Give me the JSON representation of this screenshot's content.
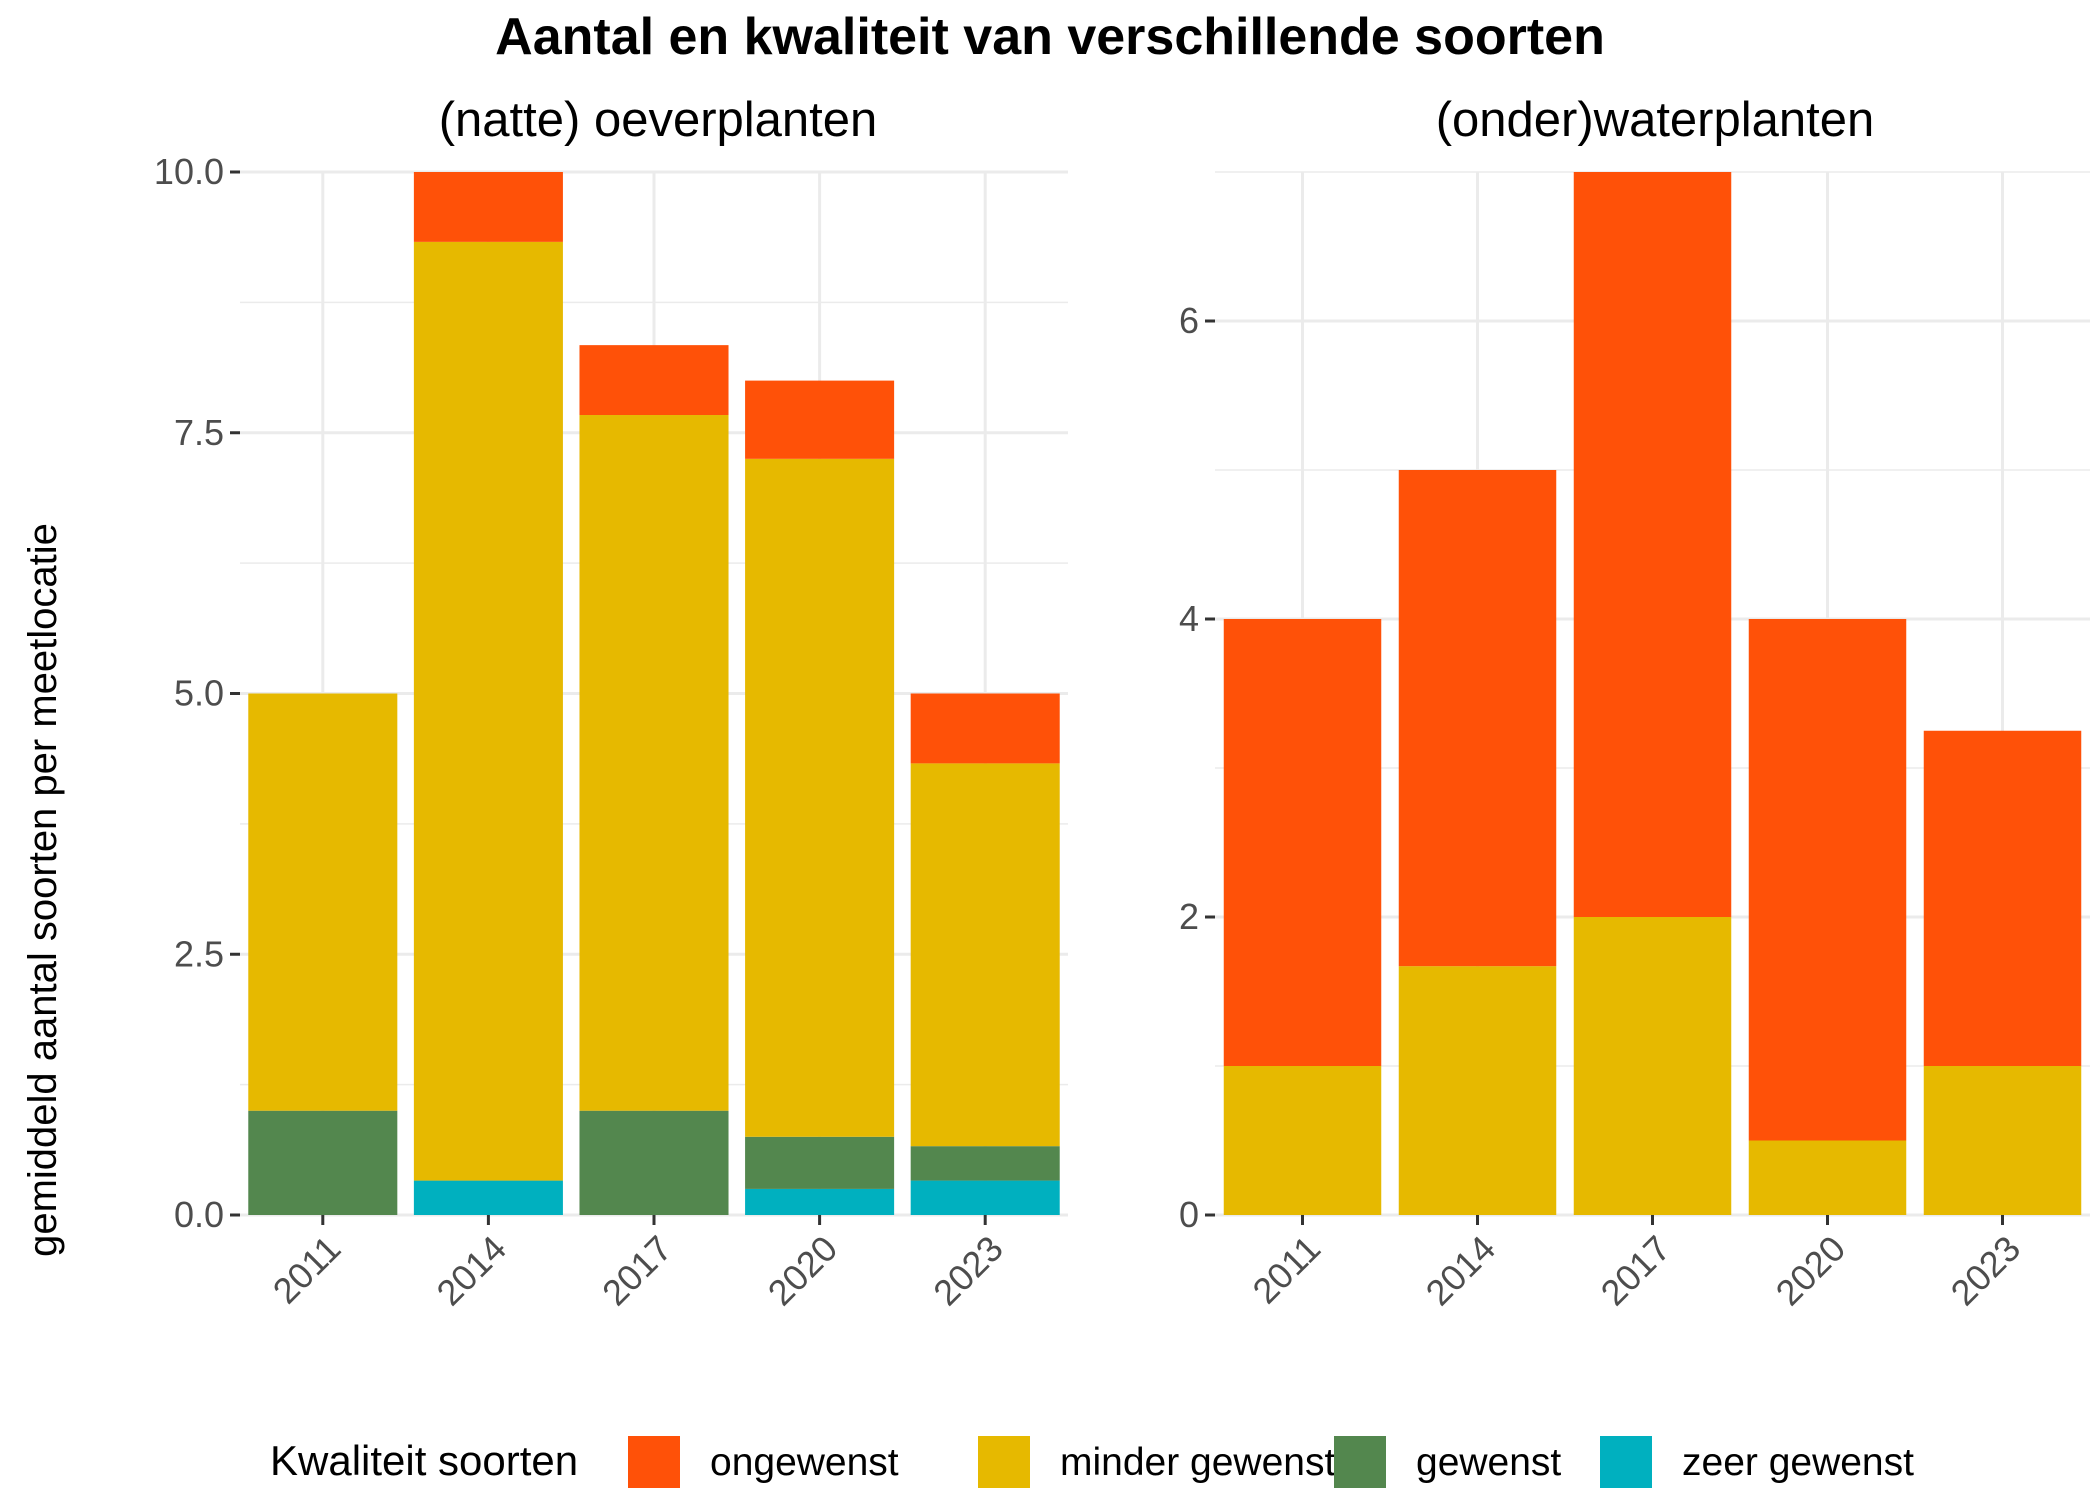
{
  "title": "Aantal en kwaliteit van verschillende soorten",
  "ylabel": "gemiddeld aantal soorten per meetlocatie",
  "legend": {
    "title": "Kwaliteit soorten",
    "placement": "bottom",
    "items": [
      {
        "label": "ongewenst",
        "color": "#FF5108"
      },
      {
        "label": "minder gewenst",
        "color": "#E6B900"
      },
      {
        "label": "gewenst",
        "color": "#53874E"
      },
      {
        "label": "zeer gewenst",
        "color": "#00B0BF"
      }
    ]
  },
  "chart_data": [
    {
      "type": "bar",
      "stacked": true,
      "title": "(natte) oeverplanten",
      "categories": [
        "2011",
        "2014",
        "2017",
        "2020",
        "2023"
      ],
      "ylim": [
        0,
        10
      ],
      "yticks": [
        0,
        2.5,
        5,
        7.5,
        10
      ],
      "ytick_labels": [
        "0.0",
        "2.5",
        "5.0",
        "7.5",
        "10.0"
      ],
      "grid": true,
      "series": [
        {
          "name": "zeer gewenst",
          "values": [
            0,
            0.33,
            0,
            0.25,
            0.33
          ]
        },
        {
          "name": "gewenst",
          "values": [
            1,
            0,
            1,
            0.5,
            0.33
          ]
        },
        {
          "name": "minder gewenst",
          "values": [
            4,
            9,
            6.67,
            6.5,
            3.67
          ]
        },
        {
          "name": "ongewenst",
          "values": [
            0,
            0.67,
            0.67,
            0.75,
            0.67
          ]
        }
      ]
    },
    {
      "type": "bar",
      "stacked": true,
      "title": "(onder)waterplanten",
      "categories": [
        "2011",
        "2014",
        "2017",
        "2020",
        "2023"
      ],
      "ylim": [
        0,
        7
      ],
      "yticks": [
        0,
        2,
        4,
        6
      ],
      "ytick_labels": [
        "0",
        "2",
        "4",
        "6"
      ],
      "grid": true,
      "series": [
        {
          "name": "zeer gewenst",
          "values": [
            0,
            0,
            0,
            0,
            0
          ]
        },
        {
          "name": "gewenst",
          "values": [
            0,
            0,
            0,
            0,
            0
          ]
        },
        {
          "name": "minder gewenst",
          "values": [
            1,
            1.67,
            2,
            0.5,
            1
          ]
        },
        {
          "name": "ongewenst",
          "values": [
            3,
            3.33,
            5,
            3.5,
            2.25
          ]
        }
      ]
    }
  ]
}
